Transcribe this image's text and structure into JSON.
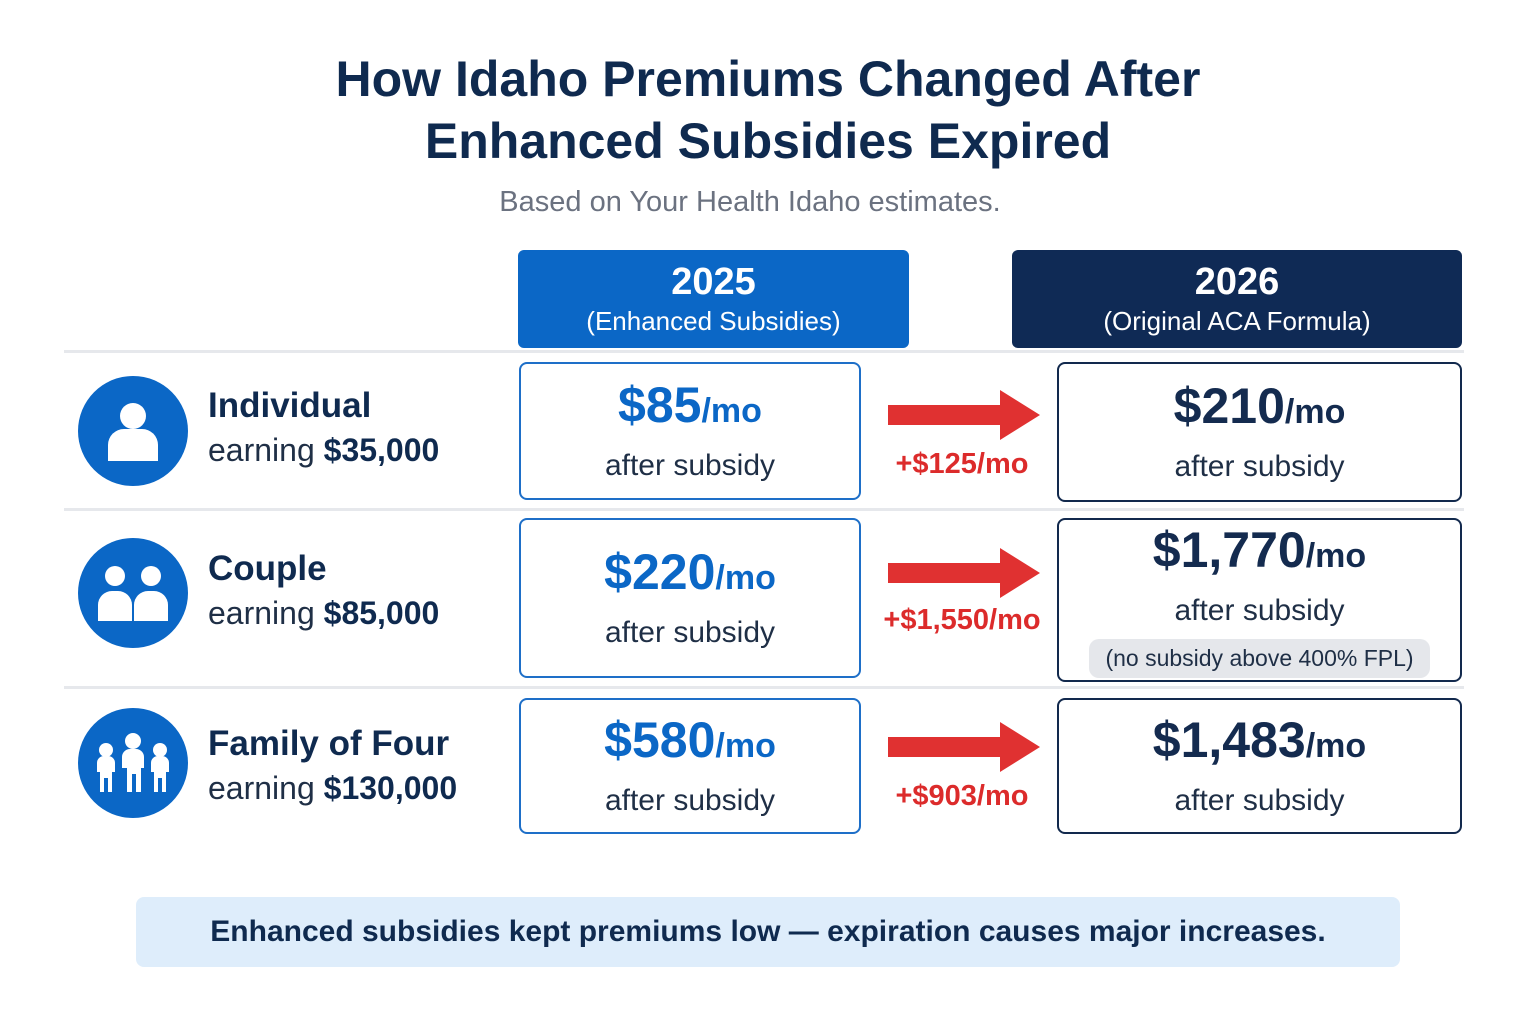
{
  "header": {
    "title_line1": "How Idaho Premiums Changed After",
    "title_line2": "Enhanced Subsidies Expired",
    "subtitle": "Based on Your Health Idaho estimates."
  },
  "columns": {
    "y2025": {
      "year": "2025",
      "label": "(Enhanced Subsidies)",
      "color": "#0b67c6"
    },
    "y2026": {
      "year": "2026",
      "label": "(Original ACA Formula)",
      "color": "#0f2a55"
    }
  },
  "rows": [
    {
      "icon": "person-icon",
      "name": "Individual",
      "earning_prefix": "earning",
      "earning_amount": "$35,000",
      "p2025": "$85",
      "p2025_unit": "/mo",
      "p2025_caption": "after subsidy",
      "increase": "+$125/mo",
      "p2026": "$210",
      "p2026_unit": "/mo",
      "p2026_caption": "after subsidy"
    },
    {
      "icon": "couple-icon",
      "name": "Couple",
      "earning_prefix": "earning",
      "earning_amount": "$85,000",
      "p2025": "$220",
      "p2025_unit": "/mo",
      "p2025_caption": "after subsidy",
      "increase": "+$1,550/mo",
      "p2026": "$1,770",
      "p2026_unit": "/mo",
      "p2026_caption": "after subsidy",
      "p2026_note": "(no subsidy above 400% FPL)"
    },
    {
      "icon": "family-icon",
      "name": "Family of Four",
      "earning_prefix": "earning",
      "earning_amount": "$130,000",
      "p2025": "$580",
      "p2025_unit": "/mo",
      "p2025_caption": "after subsidy",
      "increase": "+$903/mo",
      "p2026": "$1,483",
      "p2026_unit": "/mo",
      "p2026_caption": "after subsidy"
    }
  ],
  "arrow_icon": "right-arrow-icon",
  "arrow_color": "#e03131",
  "footer": {
    "text": "Enhanced subsidies kept premiums low — expiration causes major increases."
  }
}
